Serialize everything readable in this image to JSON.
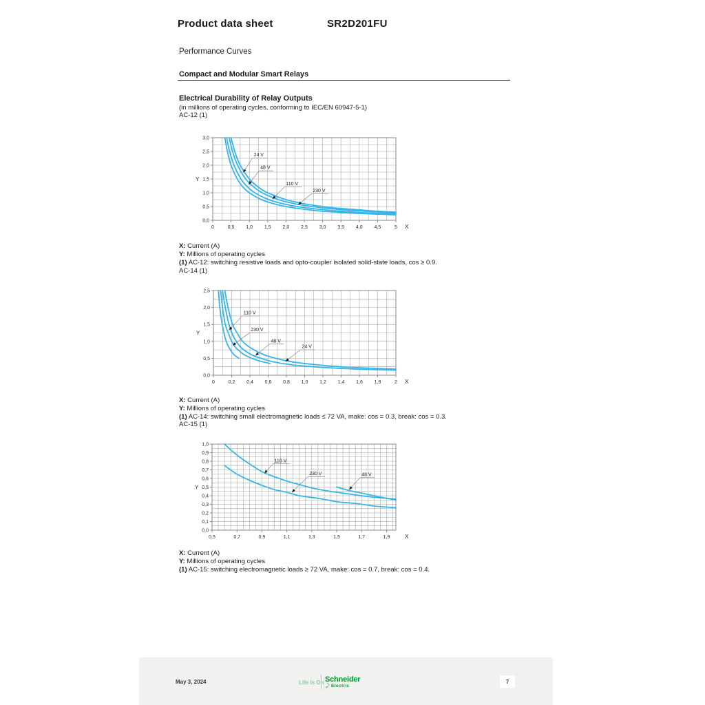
{
  "document": {
    "title": "Product data sheet",
    "product_reference": "SR2D201FU",
    "section": "Performance Curves",
    "subsection": "Compact and Modular Smart Relays",
    "heading": "Electrical Durability of Relay Outputs",
    "heading_note": "(in millions of operating cycles, conforming to IEC/EN 60947-5-1)"
  },
  "footer": {
    "date": "May 3, 2024",
    "tagline": "Life Is On",
    "brand": "Schneider",
    "brand_sub": "Electric",
    "page_number": "7"
  },
  "colors": {
    "curve": "#35b4e8",
    "grid": "#9da2a2",
    "plot_border": "#7a8080",
    "tick_text": "#2b2b2b",
    "annotation_line": "#8a8a8a",
    "arrow_head": "#1a1a1a",
    "brand_green": "#009530",
    "tagline_green": "#8cc9a5",
    "footer_bg": "#f1f1ef"
  },
  "charts": [
    {
      "label": "AC-12 (1)",
      "notes": [
        {
          "prefix": "X:",
          "text": " Current (A)"
        },
        {
          "prefix": "Y:",
          "text": " Millions of operating cycles"
        },
        {
          "prefix": "(1)",
          "text": " AC-12: switching resistive loads and opto-coupler isolated solid-state loads, cos ≥ 0.9."
        }
      ],
      "chart_data": {
        "type": "line",
        "xlabel": "X",
        "ylabel": "Y",
        "xlim": [
          0,
          5
        ],
        "ylim": [
          0,
          3
        ],
        "grid": true,
        "grid_step": {
          "x": 0.25,
          "y": 0.25
        },
        "xticks": {
          "values": [
            0,
            0.5,
            1,
            1.5,
            2,
            2.5,
            3,
            3.5,
            4,
            4.5,
            5
          ],
          "labels": [
            "0",
            "0,5",
            "1,0",
            "1,5",
            "2,0",
            "2,5",
            "3,0",
            "3,5",
            "4,0",
            "4,5",
            "5"
          ]
        },
        "yticks": {
          "values": [
            0,
            0.5,
            1,
            1.5,
            2,
            2.5,
            3
          ],
          "labels": [
            "0,0",
            "0,5",
            "1,0",
            "1,5",
            "2,0",
            "2,5",
            "3,0"
          ]
        },
        "series": [
          {
            "name": "24 V",
            "points": [
              [
                0.5,
                3
              ],
              [
                0.6,
                2.5
              ],
              [
                0.75,
                2
              ],
              [
                1,
                1.5
              ],
              [
                1.25,
                1.2
              ],
              [
                1.5,
                1
              ],
              [
                2,
                0.75
              ],
              [
                2.5,
                0.6
              ],
              [
                3,
                0.5
              ],
              [
                3.5,
                0.43
              ],
              [
                4,
                0.38
              ],
              [
                4.5,
                0.33
              ],
              [
                5,
                0.3
              ]
            ]
          },
          {
            "name": "48 V",
            "points": [
              [
                0.45,
                3
              ],
              [
                0.54,
                2.5
              ],
              [
                0.68,
                2
              ],
              [
                0.9,
                1.5
              ],
              [
                1.13,
                1.2
              ],
              [
                1.35,
                1
              ],
              [
                1.8,
                0.75
              ],
              [
                2.25,
                0.6
              ],
              [
                2.7,
                0.5
              ],
              [
                3.38,
                0.4
              ],
              [
                4,
                0.34
              ],
              [
                4.5,
                0.3
              ],
              [
                5,
                0.27
              ]
            ]
          },
          {
            "name": "110 V",
            "points": [
              [
                0.38,
                3
              ],
              [
                0.46,
                2.5
              ],
              [
                0.58,
                2
              ],
              [
                0.77,
                1.5
              ],
              [
                0.96,
                1.2
              ],
              [
                1.15,
                1
              ],
              [
                1.53,
                0.75
              ],
              [
                1.92,
                0.6
              ],
              [
                2.3,
                0.5
              ],
              [
                2.9,
                0.4
              ],
              [
                3.5,
                0.33
              ],
              [
                4.2,
                0.27
              ],
              [
                5,
                0.23
              ]
            ]
          },
          {
            "name": "230 V",
            "points": [
              [
                0.33,
                3
              ],
              [
                0.4,
                2.5
              ],
              [
                0.5,
                2
              ],
              [
                0.67,
                1.5
              ],
              [
                0.83,
                1.2
              ],
              [
                1,
                1
              ],
              [
                1.33,
                0.75
              ],
              [
                1.67,
                0.6
              ],
              [
                2,
                0.5
              ],
              [
                2.5,
                0.4
              ],
              [
                3,
                0.33
              ],
              [
                4,
                0.25
              ],
              [
                5,
                0.2
              ]
            ]
          }
        ],
        "annotations": [
          {
            "label": "24 V",
            "text_at": [
              1.12,
              2.32
            ],
            "arrow_to": [
              0.83,
              1.73
            ]
          },
          {
            "label": "48 V",
            "text_at": [
              1.3,
              1.86
            ],
            "arrow_to": [
              0.98,
              1.3
            ]
          },
          {
            "label": "110 V",
            "text_at": [
              2.0,
              1.28
            ],
            "arrow_to": [
              1.63,
              0.77
            ]
          },
          {
            "label": "230 V",
            "text_at": [
              2.73,
              1.02
            ],
            "arrow_to": [
              2.33,
              0.57
            ]
          }
        ]
      }
    },
    {
      "label": "AC-14 (1)",
      "notes": [
        {
          "prefix": "X:",
          "text": " Current (A)"
        },
        {
          "prefix": "Y:",
          "text": " Millions of operating cycles"
        },
        {
          "prefix": "(1)",
          "text": " AC-14: switching small electromagnetic loads ≤ 72 VA, make: cos = 0.3, break: cos = 0.3."
        }
      ],
      "chart_data": {
        "type": "line",
        "xlabel": "X",
        "ylabel": "Y",
        "xlim": [
          0,
          2
        ],
        "ylim": [
          0,
          2.5
        ],
        "grid": true,
        "grid_step": {
          "x": 0.1,
          "y": 0.25
        },
        "xticks": {
          "values": [
            0,
            0.2,
            0.4,
            0.6,
            0.8,
            1,
            1.2,
            1.4,
            1.6,
            1.8,
            2
          ],
          "labels": [
            "0",
            "0,2",
            "0,4",
            "0,6",
            "0,8",
            "1,0",
            "1,2",
            "1,4",
            "1,6",
            "1,8",
            "2"
          ]
        },
        "yticks": {
          "values": [
            0,
            0.5,
            1,
            1.5,
            2,
            2.5
          ],
          "labels": [
            "0,0",
            "0,5",
            "1,0",
            "1,5",
            "2,0",
            "2,5"
          ]
        },
        "series": [
          {
            "name": "110 V",
            "points": [
              [
                0.055,
                2.5
              ],
              [
                0.07,
                2
              ],
              [
                0.09,
                1.6
              ],
              [
                0.12,
                1.2
              ],
              [
                0.14,
                1
              ],
              [
                0.17,
                0.82
              ],
              [
                0.22,
                0.62
              ],
              [
                0.28,
                0.5
              ]
            ]
          },
          {
            "name": "230 V",
            "points": [
              [
                0.08,
                2.5
              ],
              [
                0.1,
                2
              ],
              [
                0.13,
                1.5
              ],
              [
                0.17,
                1.2
              ],
              [
                0.2,
                1
              ],
              [
                0.25,
                0.8
              ],
              [
                0.33,
                0.62
              ],
              [
                0.42,
                0.5
              ],
              [
                0.52,
                0.41
              ],
              [
                0.62,
                0.35
              ]
            ]
          },
          {
            "name": "48 V",
            "points": [
              [
                0.1,
                2.5
              ],
              [
                0.13,
                2
              ],
              [
                0.17,
                1.5
              ],
              [
                0.21,
                1.2
              ],
              [
                0.25,
                1
              ],
              [
                0.31,
                0.8
              ],
              [
                0.42,
                0.6
              ],
              [
                0.52,
                0.5
              ],
              [
                0.65,
                0.4
              ],
              [
                0.85,
                0.31
              ],
              [
                1.1,
                0.25
              ],
              [
                1.4,
                0.2
              ],
              [
                1.7,
                0.17
              ],
              [
                2,
                0.15
              ]
            ]
          },
          {
            "name": "24 V",
            "points": [
              [
                0.125,
                2.5
              ],
              [
                0.16,
                2
              ],
              [
                0.21,
                1.5
              ],
              [
                0.27,
                1.2
              ],
              [
                0.32,
                1
              ],
              [
                0.4,
                0.82
              ],
              [
                0.54,
                0.62
              ],
              [
                0.68,
                0.5
              ],
              [
                0.85,
                0.4
              ],
              [
                1.05,
                0.33
              ],
              [
                1.3,
                0.27
              ],
              [
                1.6,
                0.22
              ],
              [
                2,
                0.18
              ]
            ]
          }
        ],
        "annotations": [
          {
            "label": "110 V",
            "text_at": [
              0.33,
              1.8
            ],
            "arrow_to": [
              0.17,
              1.33
            ]
          },
          {
            "label": "230 V",
            "text_at": [
              0.41,
              1.3
            ],
            "arrow_to": [
              0.21,
              0.88
            ]
          },
          {
            "label": "48 V",
            "text_at": [
              0.63,
              0.97
            ],
            "arrow_to": [
              0.46,
              0.58
            ]
          },
          {
            "label": "24 V",
            "text_at": [
              0.97,
              0.8
            ],
            "arrow_to": [
              0.79,
              0.41
            ]
          }
        ]
      }
    },
    {
      "label": "AC-15 (1)",
      "notes": [
        {
          "prefix": "X:",
          "text": " Current (A)"
        },
        {
          "prefix": "Y:",
          "text": " Millions of operating cycles"
        },
        {
          "prefix": "(1)",
          "text": " AC-15: switching electromagnetic loads ≥ 72 VA, make: cos = 0.7, break: cos = 0.4."
        }
      ],
      "chart_data": {
        "type": "line",
        "xlabel": "X",
        "ylabel": "Y",
        "xlim": [
          0.5,
          1.975
        ],
        "ylim": [
          0,
          1
        ],
        "grid": true,
        "grid_step": {
          "x": 0.05,
          "y": 0.05
        },
        "xticks": {
          "values": [
            0.5,
            0.7,
            0.9,
            1.1,
            1.3,
            1.5,
            1.7,
            1.9
          ],
          "labels": [
            "0,5",
            "0,7",
            "0,9",
            "1,1",
            "1,3",
            "1,5",
            "1,7",
            "1,9"
          ]
        },
        "yticks": {
          "values": [
            0,
            0.1,
            0.2,
            0.3,
            0.4,
            0.5,
            0.6,
            0.7,
            0.8,
            0.9,
            1
          ],
          "labels": [
            "0,0",
            "0,1",
            "0,2",
            "0,3",
            "0,4",
            "0,5",
            "0,6",
            "0,7",
            "0,8",
            "0,9",
            "1,0"
          ]
        },
        "series": [
          {
            "name": "110 V",
            "points": [
              [
                0.6,
                1
              ],
              [
                0.66,
                0.92
              ],
              [
                0.72,
                0.85
              ],
              [
                0.8,
                0.77
              ],
              [
                0.9,
                0.68
              ],
              [
                1,
                0.62
              ],
              [
                1.1,
                0.57
              ],
              [
                1.2,
                0.53
              ],
              [
                1.3,
                0.49
              ],
              [
                1.45,
                0.45
              ],
              [
                1.6,
                0.42
              ],
              [
                1.75,
                0.39
              ],
              [
                1.975,
                0.36
              ]
            ]
          },
          {
            "name": "230 V",
            "points": [
              [
                0.6,
                0.75
              ],
              [
                0.7,
                0.65
              ],
              [
                0.8,
                0.58
              ],
              [
                0.9,
                0.52
              ],
              [
                1,
                0.47
              ],
              [
                1.1,
                0.44
              ],
              [
                1.2,
                0.4
              ],
              [
                1.35,
                0.37
              ],
              [
                1.5,
                0.33
              ],
              [
                1.65,
                0.31
              ],
              [
                1.8,
                0.28
              ],
              [
                1.975,
                0.26
              ]
            ]
          },
          {
            "name": "48 V",
            "points": [
              [
                1.5,
                0.5
              ],
              [
                1.6,
                0.46
              ],
              [
                1.7,
                0.43
              ],
              [
                1.8,
                0.4
              ],
              [
                1.9,
                0.37
              ],
              [
                1.975,
                0.35
              ]
            ]
          }
        ],
        "annotations": [
          {
            "label": "110 V",
            "text_at": [
              1.0,
              0.79
            ],
            "arrow_to": [
              0.92,
              0.66
            ]
          },
          {
            "label": "230 V",
            "text_at": [
              1.28,
              0.64
            ],
            "arrow_to": [
              1.14,
              0.44
            ]
          },
          {
            "label": "48 V",
            "text_at": [
              1.7,
              0.63
            ],
            "arrow_to": [
              1.6,
              0.47
            ]
          }
        ]
      }
    }
  ]
}
